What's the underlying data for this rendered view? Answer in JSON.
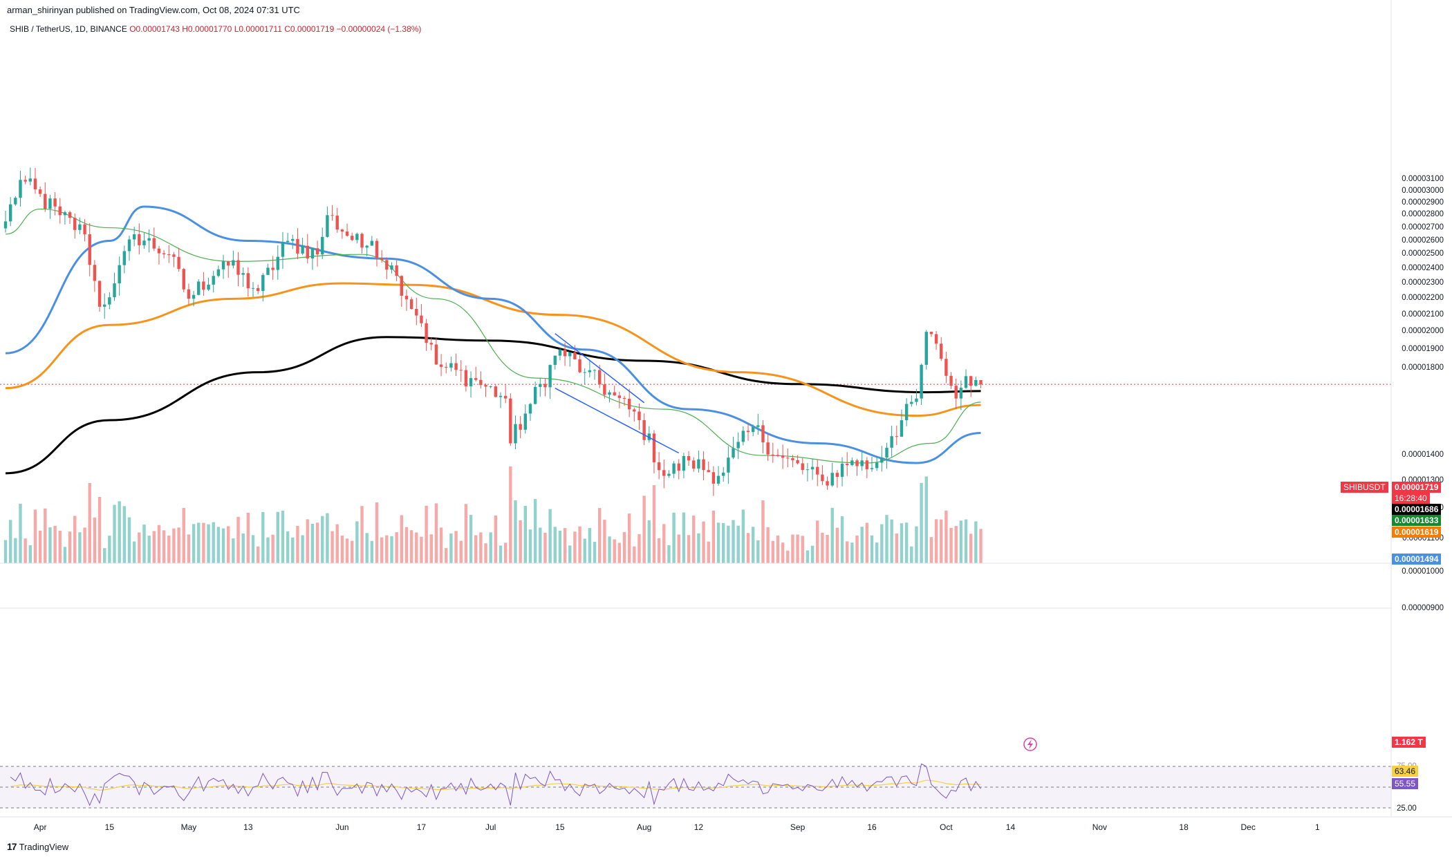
{
  "header": {
    "published": "arman_shirinyan published on TradingView.com, Oct 08, 2024 07:31 UTC",
    "symbol": "SHIB / TetherUS, 1D, BINANCE",
    "open": "O0.00001743",
    "high": "H0.00001770",
    "low": "L0.00001711",
    "close": "C0.00001719",
    "change": "−0.00000024 (−1.38%)"
  },
  "price_axis": {
    "ticks": [
      "0.00003100",
      "0.00003000",
      "0.00002900",
      "0.00002800",
      "0.00002700",
      "0.00002600",
      "0.00002500",
      "0.00002400",
      "0.00002300",
      "0.00002200",
      "0.00002100",
      "0.00002000",
      "0.00001900",
      "0.00001800",
      "0.00001400",
      "0.00001300",
      "0.00001200",
      "0.00001100",
      "0.00001000",
      "0.00000900"
    ]
  },
  "time_axis": {
    "ticks": [
      "Apr",
      "15",
      "May",
      "13",
      "Jun",
      "17",
      "Jul",
      "15",
      "Aug",
      "12",
      "Sep",
      "16",
      "Oct",
      "14",
      "Nov",
      "18",
      "Dec",
      "1"
    ]
  },
  "tags": {
    "symbol_label": "SHIBUSDT",
    "last_price": "0.00001719",
    "countdown": "16:28:40",
    "ma_black": "0.00001686",
    "ma_green": "0.00001633",
    "ma_orange": "0.00001619",
    "ma_blue": "0.00001494",
    "volume": "1.162 T"
  },
  "rsi": {
    "rsi_value": "63.46",
    "ma_value": "55.55",
    "lower_level": "25.00",
    "upper_level_partial": "75.00"
  },
  "footer": {
    "brand": "TradingView"
  },
  "colors": {
    "up": "#26a69a",
    "down": "#ef5350",
    "ma_black": "#000000",
    "ma_orange": "#f7931a",
    "ma_blue": "#4a90e2",
    "ma_green": "#4caf50",
    "rsi_line": "#7e57c2",
    "rsi_ma": "#f5d142",
    "channel": "#2962ff",
    "tag_red": "#f23645"
  },
  "chart_data": {
    "type": "candlestick",
    "symbol": "SHIBUSDT",
    "interval": "1D",
    "y_scale": "log",
    "ylim": [
      9e-06,
      3.15e-05
    ],
    "x_range": [
      "2024-03-25",
      "2024-12-01"
    ],
    "anchors": [
      {
        "date": "2024-03-25",
        "close": 2.75e-05
      },
      {
        "date": "2024-03-28",
        "close": 3.1e-05
      },
      {
        "date": "2024-04-05",
        "close": 2.8e-05
      },
      {
        "date": "2024-04-10",
        "close": 2.65e-05
      },
      {
        "date": "2024-04-13",
        "close": 2.15e-05
      },
      {
        "date": "2024-04-16",
        "close": 2.3e-05
      },
      {
        "date": "2024-04-20",
        "close": 2.65e-05
      },
      {
        "date": "2024-04-27",
        "close": 2.5e-05
      },
      {
        "date": "2024-05-01",
        "close": 2.2e-05
      },
      {
        "date": "2024-05-08",
        "close": 2.45e-05
      },
      {
        "date": "2024-05-15",
        "close": 2.25e-05
      },
      {
        "date": "2024-05-21",
        "close": 2.6e-05
      },
      {
        "date": "2024-05-27",
        "close": 2.5e-05
      },
      {
        "date": "2024-05-29",
        "close": 2.8e-05
      },
      {
        "date": "2024-06-05",
        "close": 2.55e-05
      },
      {
        "date": "2024-06-07",
        "close": 2.6e-05
      },
      {
        "date": "2024-06-12",
        "close": 2.35e-05
      },
      {
        "date": "2024-06-17",
        "close": 2.05e-05
      },
      {
        "date": "2024-06-20",
        "close": 1.82e-05
      },
      {
        "date": "2024-06-27",
        "close": 1.75e-05
      },
      {
        "date": "2024-07-04",
        "close": 1.65e-05
      },
      {
        "date": "2024-07-05",
        "close": 1.45e-05
      },
      {
        "date": "2024-07-08",
        "close": 1.58e-05
      },
      {
        "date": "2024-07-15",
        "close": 1.9e-05
      },
      {
        "date": "2024-07-20",
        "close": 1.78e-05
      },
      {
        "date": "2024-07-25",
        "close": 1.68e-05
      },
      {
        "date": "2024-07-31",
        "close": 1.55e-05
      },
      {
        "date": "2024-08-05",
        "close": 1.32e-05
      },
      {
        "date": "2024-08-10",
        "close": 1.38e-05
      },
      {
        "date": "2024-08-16",
        "close": 1.32e-05
      },
      {
        "date": "2024-08-23",
        "close": 1.52e-05
      },
      {
        "date": "2024-08-28",
        "close": 1.4e-05
      },
      {
        "date": "2024-09-06",
        "close": 1.3e-05
      },
      {
        "date": "2024-09-12",
        "close": 1.38e-05
      },
      {
        "date": "2024-09-16",
        "close": 1.35e-05
      },
      {
        "date": "2024-09-20",
        "close": 1.48e-05
      },
      {
        "date": "2024-09-25",
        "close": 1.65e-05
      },
      {
        "date": "2024-09-27",
        "close": 2e-05
      },
      {
        "date": "2024-09-30",
        "close": 1.85e-05
      },
      {
        "date": "2024-10-03",
        "close": 1.65e-05
      },
      {
        "date": "2024-10-05",
        "close": 1.76e-05
      },
      {
        "date": "2024-10-07",
        "close": 1.74e-05
      },
      {
        "date": "2024-10-08",
        "close": 1.719e-05
      }
    ],
    "moving_averages": [
      {
        "color": "black",
        "points": [
          [
            "2024-03-25",
            1.33e-05
          ],
          [
            "2024-04-15",
            1.55e-05
          ],
          [
            "2024-05-15",
            1.78e-05
          ],
          [
            "2024-06-10",
            1.97e-05
          ],
          [
            "2024-07-01",
            1.95e-05
          ],
          [
            "2024-08-01",
            1.84e-05
          ],
          [
            "2024-09-01",
            1.72e-05
          ],
          [
            "2024-09-27",
            1.68e-05
          ],
          [
            "2024-10-08",
            1.686e-05
          ]
        ]
      },
      {
        "color": "orange",
        "points": [
          [
            "2024-03-25",
            1.7e-05
          ],
          [
            "2024-04-15",
            2.04e-05
          ],
          [
            "2024-05-10",
            2.2e-05
          ],
          [
            "2024-06-01",
            2.3e-05
          ],
          [
            "2024-06-15",
            2.29e-05
          ],
          [
            "2024-07-15",
            2.1e-05
          ],
          [
            "2024-08-20",
            1.78e-05
          ],
          [
            "2024-09-25",
            1.57e-05
          ],
          [
            "2024-10-08",
            1.619e-05
          ]
        ]
      },
      {
        "color": "blue",
        "points": [
          [
            "2024-03-25",
            1.88e-05
          ],
          [
            "2024-04-15",
            2.6e-05
          ],
          [
            "2024-04-22",
            2.87e-05
          ],
          [
            "2024-05-13",
            2.6e-05
          ],
          [
            "2024-06-10",
            2.47e-05
          ],
          [
            "2024-07-01",
            2.2e-05
          ],
          [
            "2024-07-20",
            1.9e-05
          ],
          [
            "2024-08-10",
            1.6e-05
          ],
          [
            "2024-09-05",
            1.45e-05
          ],
          [
            "2024-09-25",
            1.37e-05
          ],
          [
            "2024-10-08",
            1.494e-05
          ]
        ]
      },
      {
        "color": "green",
        "points": [
          [
            "2024-03-25",
            2.65e-05
          ],
          [
            "2024-04-01",
            2.85e-05
          ],
          [
            "2024-04-15",
            2.7e-05
          ],
          [
            "2024-05-10",
            2.45e-05
          ],
          [
            "2024-06-05",
            2.5e-05
          ],
          [
            "2024-06-20",
            2.2e-05
          ],
          [
            "2024-07-10",
            1.75e-05
          ],
          [
            "2024-08-05",
            1.6e-05
          ],
          [
            "2024-08-25",
            1.4e-05
          ],
          [
            "2024-09-15",
            1.37e-05
          ],
          [
            "2024-09-28",
            1.45e-05
          ],
          [
            "2024-10-08",
            1.633e-05
          ]
        ]
      }
    ],
    "volume_last": "1.162 T",
    "rsi_levels": [
      25,
      75
    ]
  }
}
